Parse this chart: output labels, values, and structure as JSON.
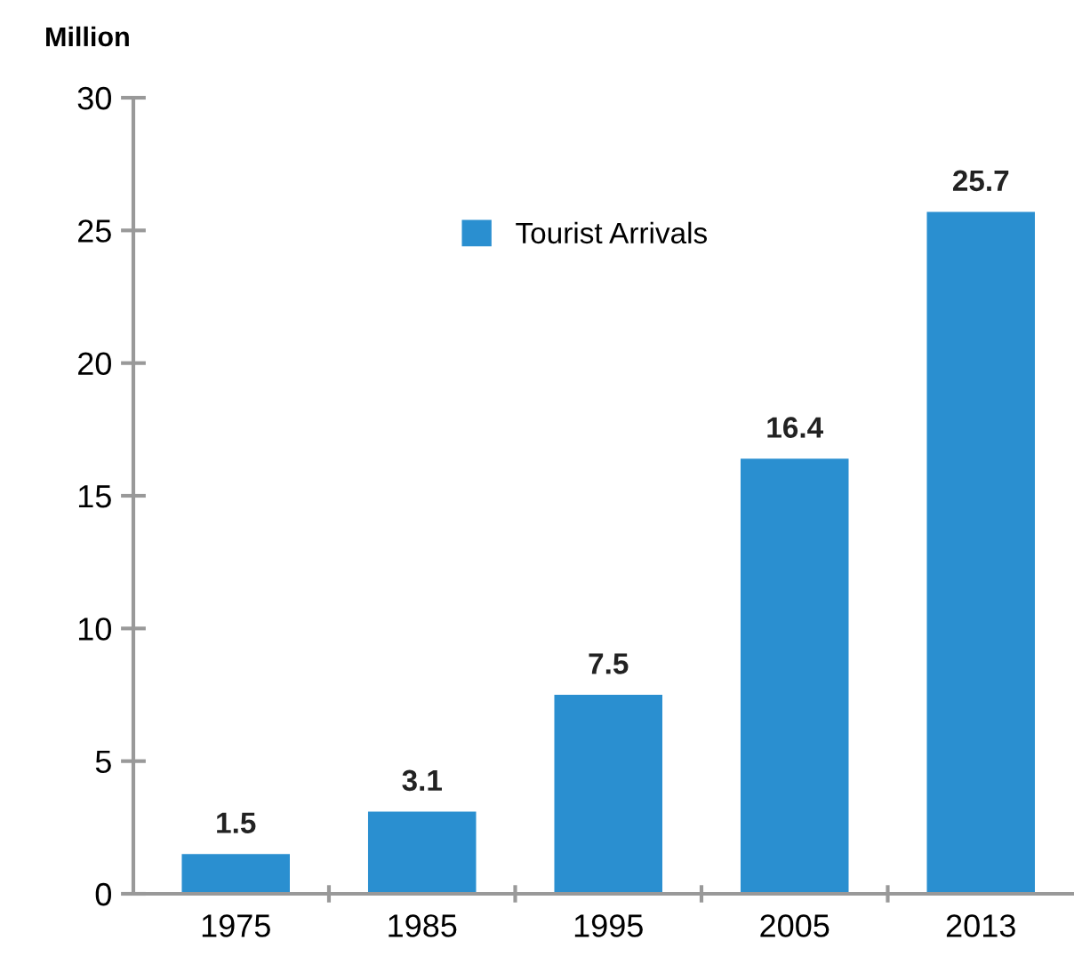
{
  "chart_data": {
    "type": "bar",
    "ylabel": "Million",
    "categories": [
      "1975",
      "1985",
      "1995",
      "2005",
      "2013"
    ],
    "series": [
      {
        "name": "Tourist Arrivals",
        "color": "#2a8fd0",
        "values": [
          1.5,
          3.1,
          7.5,
          16.4,
          25.7
        ]
      }
    ],
    "ylim": [
      0,
      30
    ],
    "yticks": [
      0,
      5,
      10,
      15,
      20,
      25,
      30
    ],
    "data_labels": true,
    "grid": false,
    "legend": "top"
  }
}
